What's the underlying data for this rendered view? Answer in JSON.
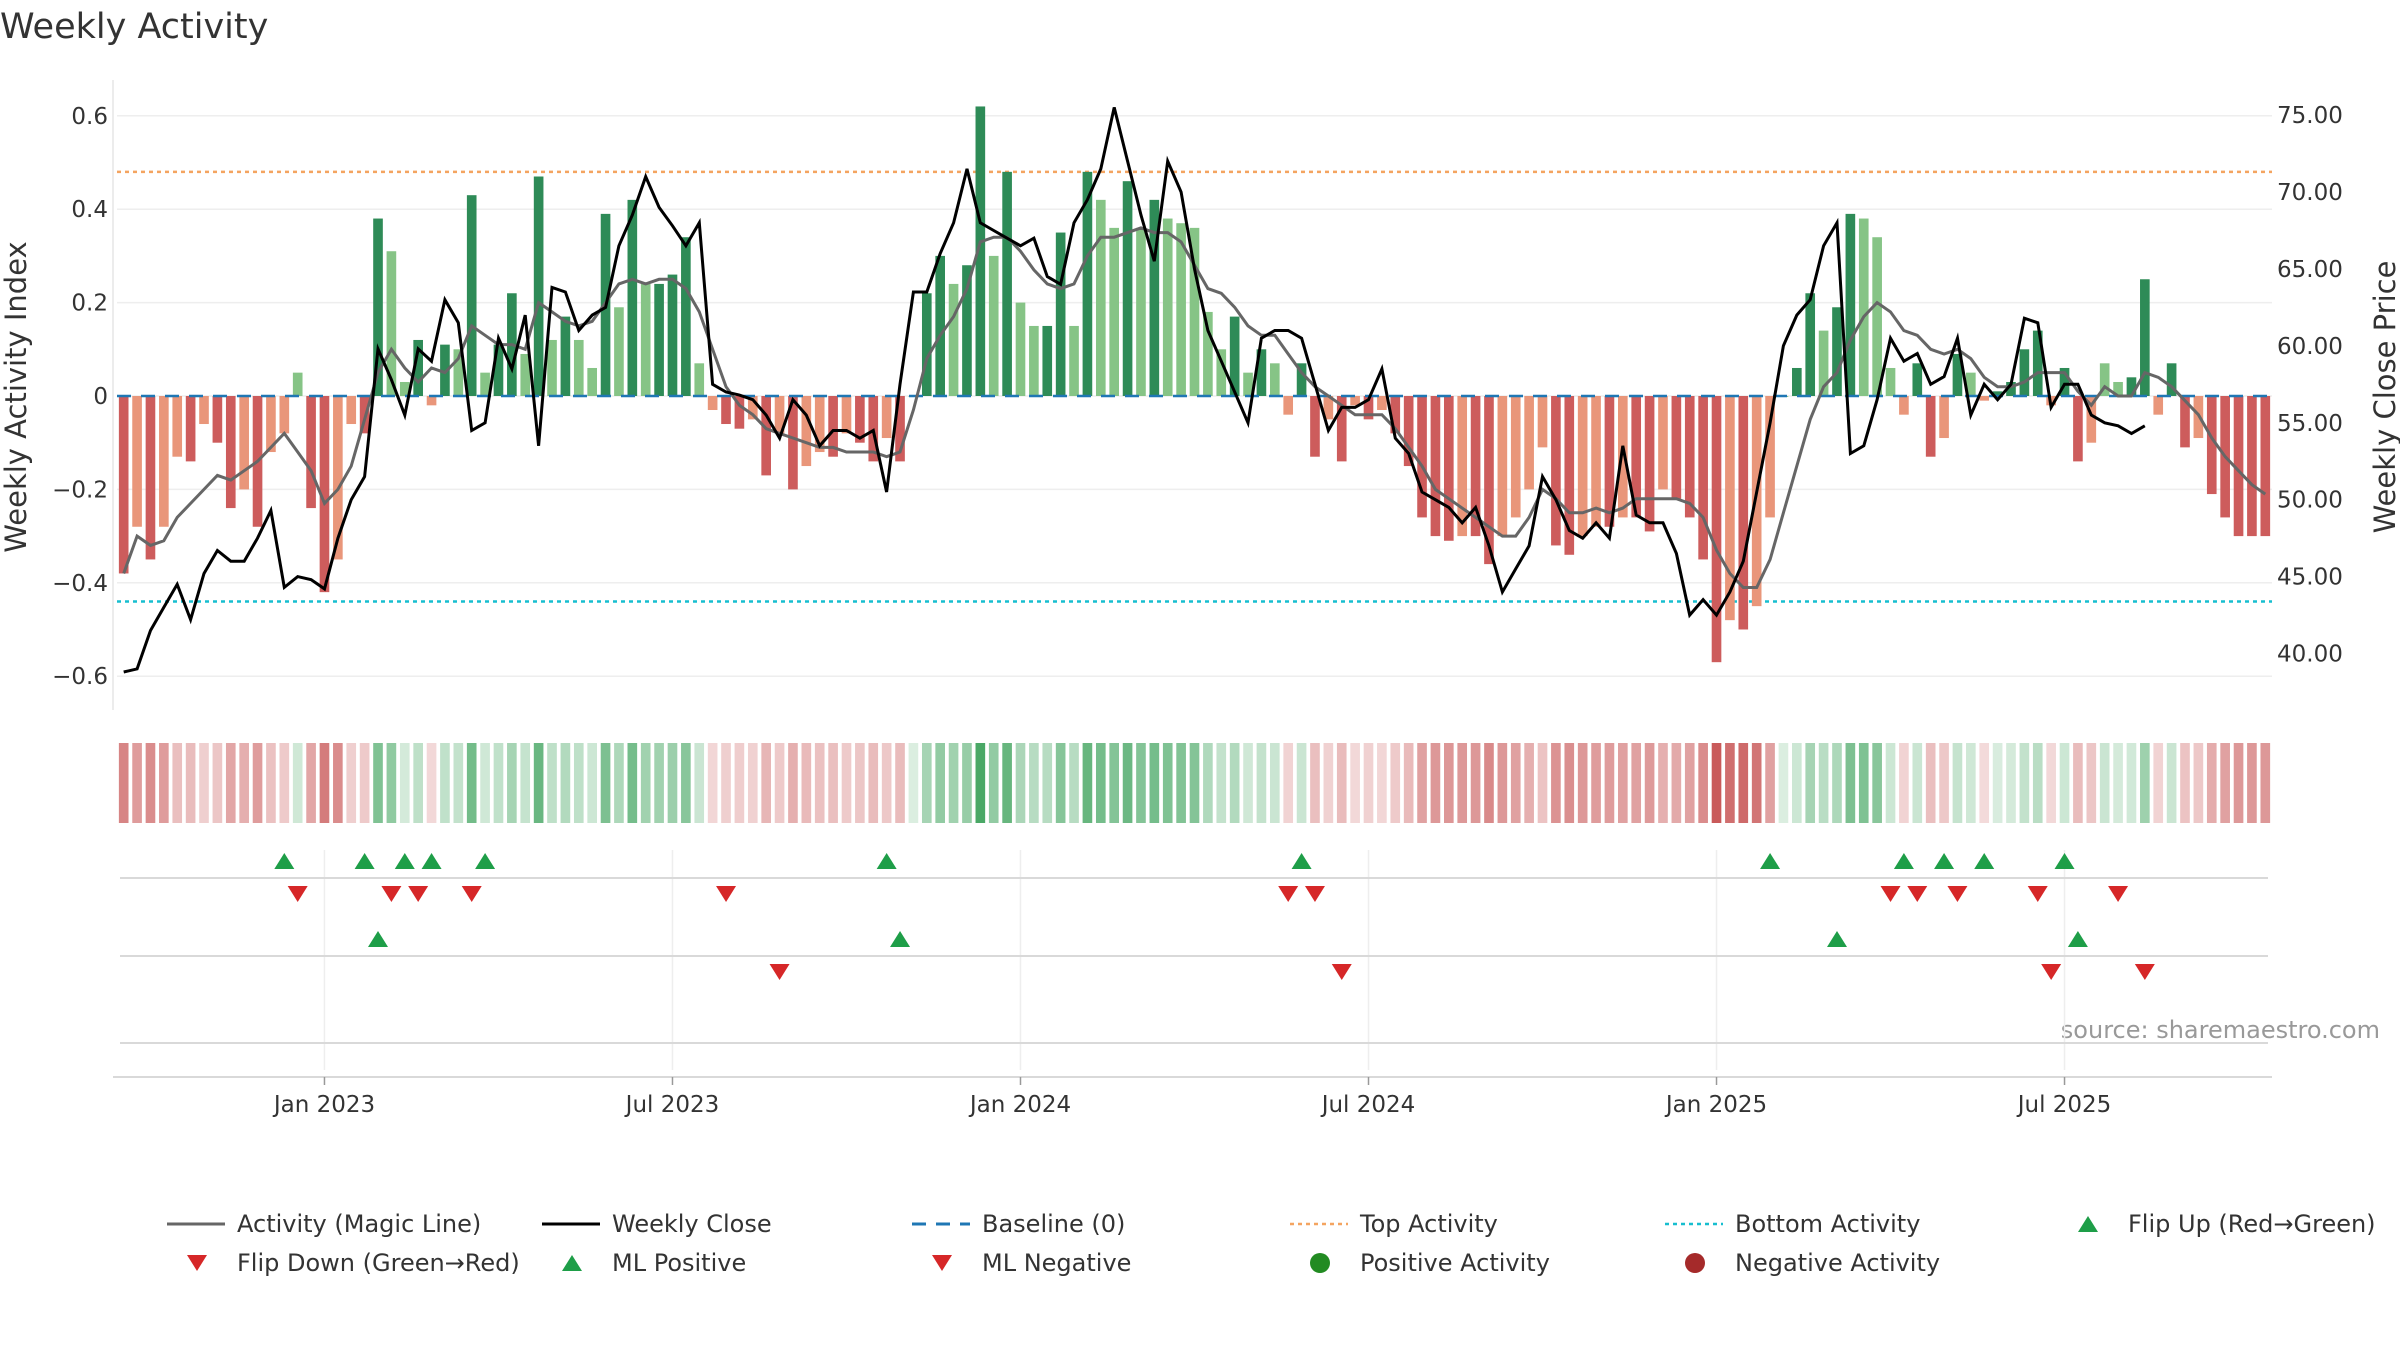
{
  "chart_data": {
    "type": "bar",
    "title": "Weekly Activity",
    "ylabel": "Weekly Activity Index",
    "y2label": "Weekly Close Price",
    "source": "source: sharemaestro.com",
    "ylim": [
      -0.66,
      0.68
    ],
    "y2lim": [
      37.5,
      76.5
    ],
    "yticks": [
      {
        "v": 0.6,
        "label": "0.6"
      },
      {
        "v": 0.4,
        "label": "0.4"
      },
      {
        "v": 0.2,
        "label": "0.2"
      },
      {
        "v": 0,
        "label": "0"
      },
      {
        "v": -0.2,
        "label": "−0.2"
      },
      {
        "v": -0.4,
        "label": "−0.4"
      },
      {
        "v": -0.6,
        "label": "−0.6"
      }
    ],
    "y2ticks": [
      "75.00",
      "70.00",
      "65.00",
      "60.00",
      "55.00",
      "50.00",
      "45.00",
      "40.00"
    ],
    "xticks": [
      {
        "week": 15,
        "label": "Jan 2023"
      },
      {
        "week": 41,
        "label": "Jul 2023"
      },
      {
        "week": 67,
        "label": "Jan 2024"
      },
      {
        "week": 93,
        "label": "Jul 2024"
      },
      {
        "week": 119,
        "label": "Jan 2025"
      },
      {
        "week": 145,
        "label": "Jul 2025"
      }
    ],
    "top_activity": 0.48,
    "bottom_activity": -0.44,
    "activity": [
      -0.38,
      -0.28,
      -0.35,
      -0.28,
      -0.13,
      -0.14,
      -0.06,
      -0.1,
      -0.24,
      -0.2,
      -0.28,
      -0.12,
      -0.08,
      0.05,
      -0.24,
      -0.42,
      -0.35,
      -0.06,
      -0.08,
      0.38,
      0.31,
      0.03,
      0.12,
      -0.02,
      0.11,
      0.1,
      0.43,
      0.05,
      0.11,
      0.22,
      0.09,
      0.47,
      0.12,
      0.17,
      0.12,
      0.06,
      0.39,
      0.19,
      0.42,
      0.24,
      0.24,
      0.26,
      0.34,
      0.07,
      -0.03,
      -0.06,
      -0.07,
      -0.05,
      -0.17,
      -0.08,
      -0.2,
      -0.15,
      -0.12,
      -0.13,
      -0.08,
      -0.1,
      -0.14,
      -0.09,
      -0.14,
      0.0,
      0.22,
      0.3,
      0.24,
      0.28,
      0.62,
      0.3,
      0.48,
      0.2,
      0.15,
      0.15,
      0.35,
      0.15,
      0.48,
      0.42,
      0.36,
      0.46,
      0.36,
      0.42,
      0.38,
      0.37,
      0.36,
      0.18,
      0.1,
      0.17,
      0.05,
      0.1,
      0.07,
      -0.04,
      0.07,
      -0.13,
      -0.05,
      -0.14,
      -0.02,
      -0.05,
      -0.03,
      -0.08,
      -0.15,
      -0.26,
      -0.3,
      -0.31,
      -0.3,
      -0.3,
      -0.36,
      -0.3,
      -0.26,
      -0.2,
      -0.11,
      -0.32,
      -0.34,
      -0.3,
      -0.28,
      -0.28,
      -0.26,
      -0.26,
      -0.29,
      -0.2,
      -0.22,
      -0.26,
      -0.35,
      -0.57,
      -0.48,
      -0.5,
      -0.45,
      -0.26,
      0.0,
      0.06,
      0.22,
      0.14,
      0.19,
      0.39,
      0.38,
      0.34,
      0.06,
      -0.04,
      0.07,
      -0.13,
      -0.09,
      0.09,
      0.05,
      -0.01,
      0.01,
      0.03,
      0.1,
      0.14,
      -0.02,
      0.06,
      -0.14,
      -0.1,
      0.07,
      0.03,
      0.04,
      0.25,
      -0.04,
      0.07,
      -0.11,
      -0.09,
      -0.21,
      -0.26,
      -0.3,
      -0.3,
      -0.3
    ],
    "magic_line": [
      -0.38,
      -0.3,
      -0.32,
      -0.31,
      -0.26,
      -0.23,
      -0.2,
      -0.17,
      -0.18,
      -0.16,
      -0.14,
      -0.11,
      -0.08,
      -0.12,
      -0.16,
      -0.23,
      -0.2,
      -0.15,
      -0.05,
      0.05,
      0.1,
      0.06,
      0.03,
      0.06,
      0.05,
      0.08,
      0.15,
      0.13,
      0.11,
      0.11,
      0.1,
      0.2,
      0.18,
      0.16,
      0.15,
      0.16,
      0.2,
      0.24,
      0.25,
      0.24,
      0.25,
      0.25,
      0.23,
      0.18,
      0.1,
      0.02,
      -0.02,
      -0.04,
      -0.07,
      -0.08,
      -0.09,
      -0.1,
      -0.11,
      -0.11,
      -0.12,
      -0.12,
      -0.12,
      -0.13,
      -0.12,
      -0.03,
      0.08,
      0.13,
      0.17,
      0.23,
      0.33,
      0.34,
      0.34,
      0.31,
      0.27,
      0.24,
      0.23,
      0.24,
      0.3,
      0.34,
      0.34,
      0.35,
      0.36,
      0.35,
      0.35,
      0.33,
      0.28,
      0.23,
      0.22,
      0.19,
      0.15,
      0.13,
      0.13,
      0.09,
      0.05,
      0.02,
      0.0,
      -0.02,
      -0.04,
      -0.04,
      -0.04,
      -0.07,
      -0.11,
      -0.15,
      -0.2,
      -0.22,
      -0.24,
      -0.26,
      -0.28,
      -0.3,
      -0.3,
      -0.26,
      -0.2,
      -0.22,
      -0.25,
      -0.25,
      -0.24,
      -0.25,
      -0.24,
      -0.22,
      -0.22,
      -0.22,
      -0.22,
      -0.23,
      -0.26,
      -0.33,
      -0.38,
      -0.41,
      -0.41,
      -0.35,
      -0.25,
      -0.15,
      -0.05,
      0.02,
      0.05,
      0.12,
      0.17,
      0.2,
      0.18,
      0.14,
      0.13,
      0.1,
      0.09,
      0.1,
      0.08,
      0.04,
      0.02,
      0.02,
      0.03,
      0.05,
      0.05,
      0.05,
      0.01,
      -0.02,
      0.02,
      0.0,
      0.0,
      0.05,
      0.04,
      0.02,
      -0.01,
      -0.04,
      -0.09,
      -0.13,
      -0.16,
      -0.19,
      -0.21
    ],
    "weekly_close": [
      38.8,
      39.0,
      41.5,
      43.0,
      44.5,
      42.2,
      45.2,
      46.7,
      46.0,
      46.0,
      47.5,
      49.3,
      44.3,
      45.0,
      44.8,
      44.2,
      47.5,
      50.0,
      51.5,
      59.8,
      57.8,
      55.5,
      59.8,
      59.0,
      63.0,
      61.5,
      54.5,
      55.0,
      60.5,
      58.5,
      62.0,
      53.5,
      63.8,
      63.5,
      61.0,
      62.0,
      62.5,
      66.5,
      68.5,
      71.0,
      69.0,
      67.8,
      66.5,
      68.0,
      57.5,
      57.0,
      56.8,
      56.5,
      55.5,
      54.0,
      56.5,
      55.5,
      53.5,
      54.5,
      54.5,
      54.0,
      54.5,
      50.5,
      57.5,
      63.5,
      63.5,
      66.0,
      68.0,
      71.5,
      68.0,
      67.5,
      67.0,
      66.5,
      67.0,
      64.5,
      64.0,
      68.0,
      69.5,
      71.5,
      75.5,
      72.0,
      68.5,
      65.5,
      72.0,
      70.0,
      65.0,
      61.0,
      59.0,
      57.0,
      55.0,
      60.5,
      61.0,
      61.0,
      60.5,
      57.5,
      54.5,
      56.0,
      56.0,
      56.5,
      58.5,
      54.0,
      53.0,
      50.5,
      50.0,
      49.5,
      48.5,
      49.5,
      47.0,
      44.0,
      45.5,
      47.0,
      51.5,
      50.0,
      48.0,
      47.5,
      48.5,
      47.5,
      53.5,
      49.0,
      48.5,
      48.5,
      46.5,
      42.5,
      43.5,
      42.5,
      44.0,
      46.0,
      50.5,
      55.0,
      60.0,
      62.0,
      63.0,
      66.5,
      68.0,
      53.0,
      53.5,
      56.5,
      60.5,
      59.0,
      59.5,
      57.5,
      58.0,
      60.5,
      55.5,
      57.5,
      56.5,
      57.5,
      61.8,
      61.5,
      56.0,
      57.5,
      57.5,
      55.5,
      55.0,
      54.8,
      54.3,
      54.8
    ],
    "flip_up_row1": [
      12,
      18,
      21,
      23,
      27,
      57,
      88,
      123,
      133,
      136,
      139,
      145
    ],
    "flip_down_row1": [
      13,
      20,
      22,
      26,
      45,
      87,
      89,
      132,
      134,
      137,
      143,
      149
    ],
    "ml_positive": [
      19,
      58,
      128,
      146
    ],
    "ml_negative": [
      49,
      91,
      144,
      151
    ],
    "legend": [
      {
        "id": "magic",
        "label": "Activity (Magic Line)"
      },
      {
        "id": "close",
        "label": "Weekly Close"
      },
      {
        "id": "baseline",
        "label": "Baseline (0)"
      },
      {
        "id": "top",
        "label": "Top Activity"
      },
      {
        "id": "bottom",
        "label": "Bottom Activity"
      },
      {
        "id": "flipup",
        "label": "Flip Up (Red→Green)"
      },
      {
        "id": "flipdown",
        "label": "Flip Down (Green→Red)"
      },
      {
        "id": "mlpos",
        "label": "ML Positive"
      },
      {
        "id": "mlneg",
        "label": "ML Negative"
      },
      {
        "id": "posact",
        "label": "Positive Activity"
      },
      {
        "id": "negact",
        "label": "Negative Activity"
      }
    ]
  },
  "colors": {
    "pos_dark": "#2e8b57",
    "pos_light": "#86c486",
    "neg_dark": "#cd5c5c",
    "neg_light": "#e9967a",
    "magic": "#666666",
    "close": "#000000",
    "baseline": "#1f77b4",
    "top": "#f4a460",
    "bottom": "#17becf",
    "marker_up": "#1e9e48",
    "marker_down": "#d62728",
    "pos_dot": "#228b22",
    "neg_dot": "#a52a2a"
  }
}
